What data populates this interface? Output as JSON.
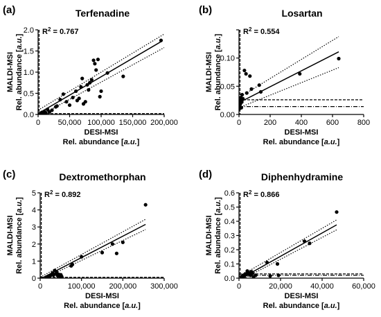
{
  "figure": {
    "x_title_line1": "DESI-MSI",
    "x_title_line2_prefix": "Rel. abundance [",
    "x_title_line2_unit": "a.u.",
    "x_title_line2_suffix": "]",
    "y_title_line1": "MALDI-MSI",
    "y_title_line2_prefix": "Rel. abundance [",
    "y_title_line2_unit": "a.u.",
    "y_title_line2_suffix": "]",
    "r2_prefix": "R",
    "r2_exp": "2",
    "r2_eq": " = "
  },
  "chart_data": [
    {
      "letter": "(a)",
      "title": "Terfenadine",
      "r2": "0.767",
      "type": "scatter",
      "xlim": [
        0,
        200000
      ],
      "ylim": [
        0,
        2.0
      ],
      "xticks": [
        0,
        50000,
        100000,
        150000,
        200000
      ],
      "xtick_labels": [
        "0",
        "50,000",
        "100,000",
        "150,000",
        "200,000"
      ],
      "yticks": [
        0,
        0.5,
        1.0,
        1.5,
        2.0
      ],
      "ytick_labels": [
        "0.0",
        "0.5",
        "1.0",
        "1.5",
        "2.0"
      ],
      "fit": {
        "x": [
          0,
          195000
        ],
        "y": [
          0.02,
          1.72
        ]
      },
      "ci_upper": {
        "x": [
          0,
          200000
        ],
        "y": [
          0.1,
          1.9
        ]
      },
      "ci_lower": {
        "x": [
          0,
          200000
        ],
        "y": [
          -0.05,
          1.58
        ]
      },
      "lod_x": [
        500
      ],
      "lod_y": [
        0.02
      ],
      "points": [
        [
          2000,
          0.01
        ],
        [
          4000,
          0.03
        ],
        [
          6000,
          0.05
        ],
        [
          8000,
          0.02
        ],
        [
          10000,
          0.07
        ],
        [
          12000,
          0.04
        ],
        [
          15000,
          0.12
        ],
        [
          18000,
          0.06
        ],
        [
          22000,
          0.1
        ],
        [
          28000,
          0.18
        ],
        [
          30000,
          0.2
        ],
        [
          35000,
          0.35
        ],
        [
          40000,
          0.48
        ],
        [
          45000,
          0.3
        ],
        [
          50000,
          0.22
        ],
        [
          55000,
          0.4
        ],
        [
          60000,
          0.55
        ],
        [
          62000,
          0.33
        ],
        [
          65000,
          0.38
        ],
        [
          68000,
          0.65
        ],
        [
          70000,
          0.85
        ],
        [
          72000,
          0.25
        ],
        [
          75000,
          0.3
        ],
        [
          78000,
          0.7
        ],
        [
          80000,
          0.58
        ],
        [
          82000,
          0.75
        ],
        [
          85000,
          0.82
        ],
        [
          88000,
          1.28
        ],
        [
          90000,
          1.2
        ],
        [
          92000,
          1.05
        ],
        [
          95000,
          1.3
        ],
        [
          98000,
          0.42
        ],
        [
          100000,
          0.55
        ],
        [
          110000,
          0.98
        ],
        [
          135000,
          0.9
        ],
        [
          195000,
          1.75
        ]
      ]
    },
    {
      "letter": "(b)",
      "title": "Losartan",
      "r2": "0.554",
      "type": "scatter",
      "xlim": [
        0,
        800
      ],
      "ylim": [
        0,
        0.15
      ],
      "xticks": [
        0,
        200,
        400,
        600,
        800
      ],
      "xtick_labels": [
        "0",
        "200",
        "400",
        "600",
        "800"
      ],
      "yticks": [
        0,
        0.05,
        0.1,
        0.15
      ],
      "ytick_labels": [
        "0.00",
        "0.05",
        "0.10",
        ""
      ],
      "fit": {
        "x": [
          0,
          640
        ],
        "y": [
          0.021,
          0.111
        ]
      },
      "ci_upper": {
        "x": [
          0,
          640
        ],
        "y": [
          0.03,
          0.138
        ]
      },
      "ci_lower": {
        "x": [
          0,
          640
        ],
        "y": [
          0.012,
          0.083
        ]
      },
      "lod_x": [
        2
      ],
      "lod_y": [
        0.026,
        0.014
      ],
      "points": [
        [
          2,
          0.01
        ],
        [
          3,
          0.015
        ],
        [
          5,
          0.02
        ],
        [
          8,
          0.018
        ],
        [
          10,
          0.025
        ],
        [
          12,
          0.03
        ],
        [
          15,
          0.012
        ],
        [
          18,
          0.022
        ],
        [
          20,
          0.035
        ],
        [
          25,
          0.028
        ],
        [
          35,
          0.078
        ],
        [
          45,
          0.072
        ],
        [
          50,
          0.038
        ],
        [
          70,
          0.068
        ],
        [
          80,
          0.045
        ],
        [
          130,
          0.052
        ],
        [
          140,
          0.04
        ],
        [
          390,
          0.072
        ],
        [
          640,
          0.099
        ]
      ]
    },
    {
      "letter": "(c)",
      "title": "Dextromethorphan",
      "r2": "0.892",
      "type": "scatter",
      "xlim": [
        0,
        300000
      ],
      "ylim": [
        0,
        5
      ],
      "xticks": [
        0,
        100000,
        200000,
        300000
      ],
      "xtick_labels": [
        "0",
        "100,000",
        "200,000",
        "300,000"
      ],
      "yticks": [
        0,
        1,
        2,
        3,
        4,
        5
      ],
      "ytick_labels": [
        "0",
        "1",
        "2",
        "3",
        "4",
        "5"
      ],
      "fit": {
        "x": [
          0,
          255000
        ],
        "y": [
          -0.05,
          3.15
        ]
      },
      "ci_upper": {
        "x": [
          0,
          255000
        ],
        "y": [
          0.05,
          3.45
        ]
      },
      "ci_lower": {
        "x": [
          0,
          255000
        ],
        "y": [
          -0.12,
          2.85
        ]
      },
      "lod_x": [
        1000
      ],
      "lod_y": [
        0.05
      ],
      "points": [
        [
          15000,
          0.05
        ],
        [
          18000,
          0.08
        ],
        [
          20000,
          0.12
        ],
        [
          22000,
          0.1
        ],
        [
          25000,
          0.15
        ],
        [
          28000,
          0.2
        ],
        [
          30000,
          0.3
        ],
        [
          32000,
          0.18
        ],
        [
          35000,
          0.45
        ],
        [
          38000,
          0.25
        ],
        [
          40000,
          0.35
        ],
        [
          42000,
          0.15
        ],
        [
          45000,
          0.22
        ],
        [
          48000,
          0.12
        ],
        [
          50000,
          0.2
        ],
        [
          52000,
          0.1
        ],
        [
          75000,
          0.72
        ],
        [
          78000,
          0.8
        ],
        [
          100000,
          1.25
        ],
        [
          150000,
          1.5
        ],
        [
          175000,
          2.0
        ],
        [
          185000,
          1.45
        ],
        [
          200000,
          2.1
        ],
        [
          255000,
          4.3
        ]
      ]
    },
    {
      "letter": "(d)",
      "title": "Diphenhydramine",
      "r2": "0.866",
      "type": "scatter",
      "xlim": [
        0,
        60000
      ],
      "ylim": [
        0,
        0.6
      ],
      "xticks": [
        0,
        20000,
        40000,
        60000
      ],
      "xtick_labels": [
        "0",
        "20,000",
        "40,000",
        "60,000"
      ],
      "yticks": [
        0,
        0.1,
        0.2,
        0.3,
        0.4,
        0.5,
        0.6
      ],
      "ytick_labels": [
        "0.0",
        "0.1",
        "0.2",
        "0.3",
        "0.4",
        "0.5",
        "0.6"
      ],
      "fit": {
        "x": [
          0,
          47000
        ],
        "y": [
          -0.01,
          0.375
        ]
      },
      "ci_upper": {
        "x": [
          0,
          47000
        ],
        "y": [
          0.01,
          0.41
        ]
      },
      "ci_lower": {
        "x": [
          0,
          47000
        ],
        "y": [
          -0.02,
          0.34
        ]
      },
      "lod_x": [
        200
      ],
      "lod_y": [
        0.03,
        0.02
      ],
      "points": [
        [
          1500,
          0.01
        ],
        [
          2000,
          0.02
        ],
        [
          2500,
          0.015
        ],
        [
          3000,
          0.03
        ],
        [
          3500,
          0.025
        ],
        [
          4000,
          0.05
        ],
        [
          4500,
          0.04
        ],
        [
          5000,
          0.03
        ],
        [
          5500,
          0.02
        ],
        [
          6000,
          0.045
        ],
        [
          6500,
          0.035
        ],
        [
          7000,
          0.01
        ],
        [
          8000,
          0.02
        ],
        [
          13500,
          0.11
        ],
        [
          15000,
          0.015
        ],
        [
          18500,
          0.1
        ],
        [
          19000,
          0.02
        ],
        [
          31500,
          0.26
        ],
        [
          34000,
          0.245
        ],
        [
          47000,
          0.465
        ]
      ]
    }
  ]
}
